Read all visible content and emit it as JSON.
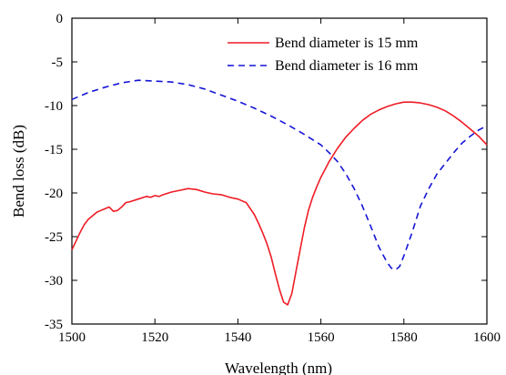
{
  "chart_data": {
    "type": "line",
    "title": "",
    "xlabel": "Wavelength (nm)",
    "ylabel": "Bend loss (dB)",
    "xlim": [
      1500,
      1600
    ],
    "ylim": [
      -35,
      0
    ],
    "x_ticks": [
      1500,
      1520,
      1540,
      1560,
      1580,
      1600
    ],
    "y_ticks": [
      0,
      -5,
      -10,
      -15,
      -20,
      -25,
      -30,
      -35
    ],
    "grid": false,
    "legend_position": "top-right",
    "series": [
      {
        "name": "Bend diameter is 15 mm",
        "color": "#ee1c25",
        "dash": "solid",
        "x": [
          1500,
          1501,
          1502,
          1503,
          1504,
          1505,
          1506,
          1507,
          1508,
          1509,
          1510,
          1511,
          1512,
          1513,
          1514,
          1516,
          1518,
          1519,
          1520,
          1521,
          1522,
          1524,
          1526,
          1528,
          1530,
          1532,
          1534,
          1536,
          1538,
          1540,
          1542,
          1543,
          1544,
          1545,
          1546,
          1547,
          1548,
          1549,
          1550,
          1551,
          1552,
          1553,
          1554,
          1555,
          1556,
          1557,
          1558,
          1559,
          1560,
          1561,
          1562,
          1564,
          1566,
          1568,
          1570,
          1572,
          1574,
          1576,
          1578,
          1580,
          1582,
          1584,
          1586,
          1588,
          1590,
          1592,
          1594,
          1596,
          1598,
          1600
        ],
        "y": [
          -26.5,
          -25.5,
          -24.5,
          -23.6,
          -23.0,
          -22.6,
          -22.2,
          -22.0,
          -21.8,
          -21.6,
          -22.1,
          -22.0,
          -21.6,
          -21.1,
          -21.0,
          -20.7,
          -20.4,
          -20.5,
          -20.3,
          -20.4,
          -20.2,
          -19.9,
          -19.7,
          -19.5,
          -19.6,
          -19.9,
          -20.1,
          -20.2,
          -20.5,
          -20.7,
          -21.1,
          -21.8,
          -22.5,
          -23.5,
          -24.6,
          -25.8,
          -27.3,
          -29.2,
          -31.0,
          -32.5,
          -32.8,
          -31.5,
          -29.0,
          -26.5,
          -24.0,
          -22.0,
          -20.5,
          -19.3,
          -18.2,
          -17.3,
          -16.4,
          -14.9,
          -13.6,
          -12.6,
          -11.7,
          -11.0,
          -10.5,
          -10.1,
          -9.8,
          -9.6,
          -9.6,
          -9.7,
          -9.9,
          -10.2,
          -10.6,
          -11.2,
          -11.9,
          -12.7,
          -13.5,
          -14.5
        ]
      },
      {
        "name": "Bend diameter is 16 mm",
        "color": "#1515d6",
        "dash": "dashed",
        "x": [
          1500,
          1504,
          1508,
          1512,
          1516,
          1520,
          1524,
          1528,
          1532,
          1536,
          1540,
          1544,
          1548,
          1552,
          1556,
          1560,
          1562,
          1564,
          1566,
          1568,
          1570,
          1572,
          1574,
          1576,
          1577,
          1578,
          1579,
          1580,
          1582,
          1584,
          1586,
          1588,
          1590,
          1592,
          1594,
          1596,
          1598,
          1600
        ],
        "y": [
          -9.3,
          -8.5,
          -7.9,
          -7.4,
          -7.1,
          -7.2,
          -7.3,
          -7.6,
          -8.1,
          -8.8,
          -9.5,
          -10.3,
          -11.2,
          -12.2,
          -13.3,
          -14.5,
          -15.4,
          -16.4,
          -17.8,
          -19.5,
          -21.5,
          -23.8,
          -26.2,
          -28.0,
          -28.6,
          -28.8,
          -28.4,
          -27.2,
          -24.5,
          -21.5,
          -19.5,
          -17.8,
          -16.6,
          -15.4,
          -14.3,
          -13.5,
          -12.8,
          -12.3
        ]
      }
    ]
  }
}
